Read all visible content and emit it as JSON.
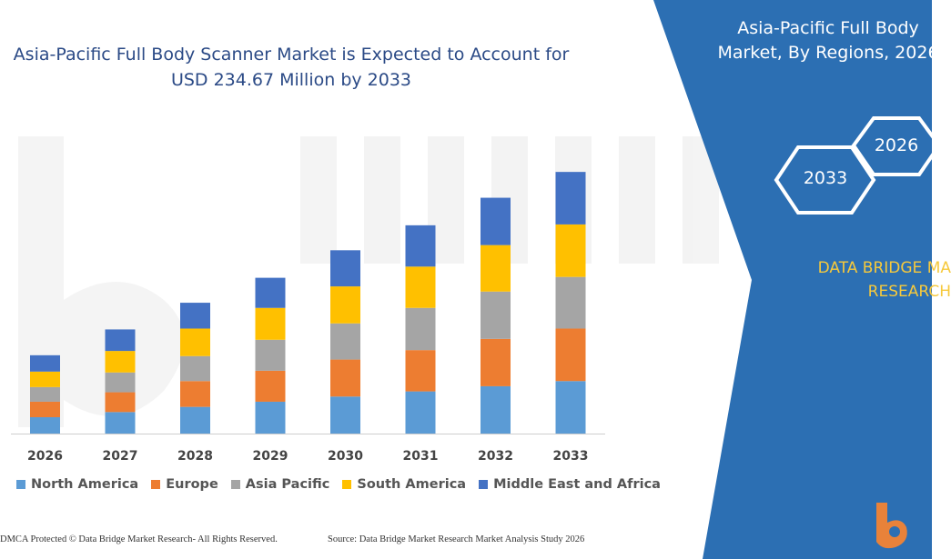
{
  "header": {
    "title_line1": "Asia-Pacific Full Body Scanner Market is Expected to Account for",
    "title_line2": "USD 234.67 Million by 2033"
  },
  "panel": {
    "title_line1": "Asia-Pacific Full Body",
    "title_line2": "Market, By Regions, 2026",
    "hex_left": "2033",
    "hex_right": "2026",
    "brand_line1": "DATA BRIDGE MA",
    "brand_line2": "RESEARCH"
  },
  "footer": {
    "left": "DMCA Protected © Data Bridge Market Research-  All Rights Reserved.",
    "right": "Source: Data Bridge Market Research  Market Analysis Study 2026"
  },
  "colors": {
    "panel_blue": "#2c6fb3",
    "accent_yellow": "#f6c93c"
  },
  "chart_data": {
    "type": "bar",
    "stacked": true,
    "categories": [
      "2026",
      "2027",
      "2028",
      "2029",
      "2030",
      "2031",
      "2032",
      "2033"
    ],
    "series": [
      {
        "name": "North America",
        "color": "#5b9bd5",
        "values": [
          19,
          25,
          31,
          37,
          43,
          49,
          55,
          61
        ]
      },
      {
        "name": "Europe",
        "color": "#ed7d31",
        "values": [
          18,
          23,
          30,
          36,
          43,
          48,
          55,
          61
        ]
      },
      {
        "name": "Asia Pacific",
        "color": "#a5a5a5",
        "values": [
          17,
          23,
          29,
          36,
          42,
          49,
          55,
          60
        ]
      },
      {
        "name": "South America",
        "color": "#ffc000",
        "values": [
          18,
          25,
          32,
          37,
          43,
          48,
          54,
          61
        ]
      },
      {
        "name": "Middle East and Africa",
        "color": "#4472c4",
        "values": [
          19,
          25,
          30,
          35,
          42,
          48,
          55,
          61
        ]
      }
    ],
    "ylim": [
      0,
      320
    ],
    "grid": false,
    "legend": "bottom"
  }
}
